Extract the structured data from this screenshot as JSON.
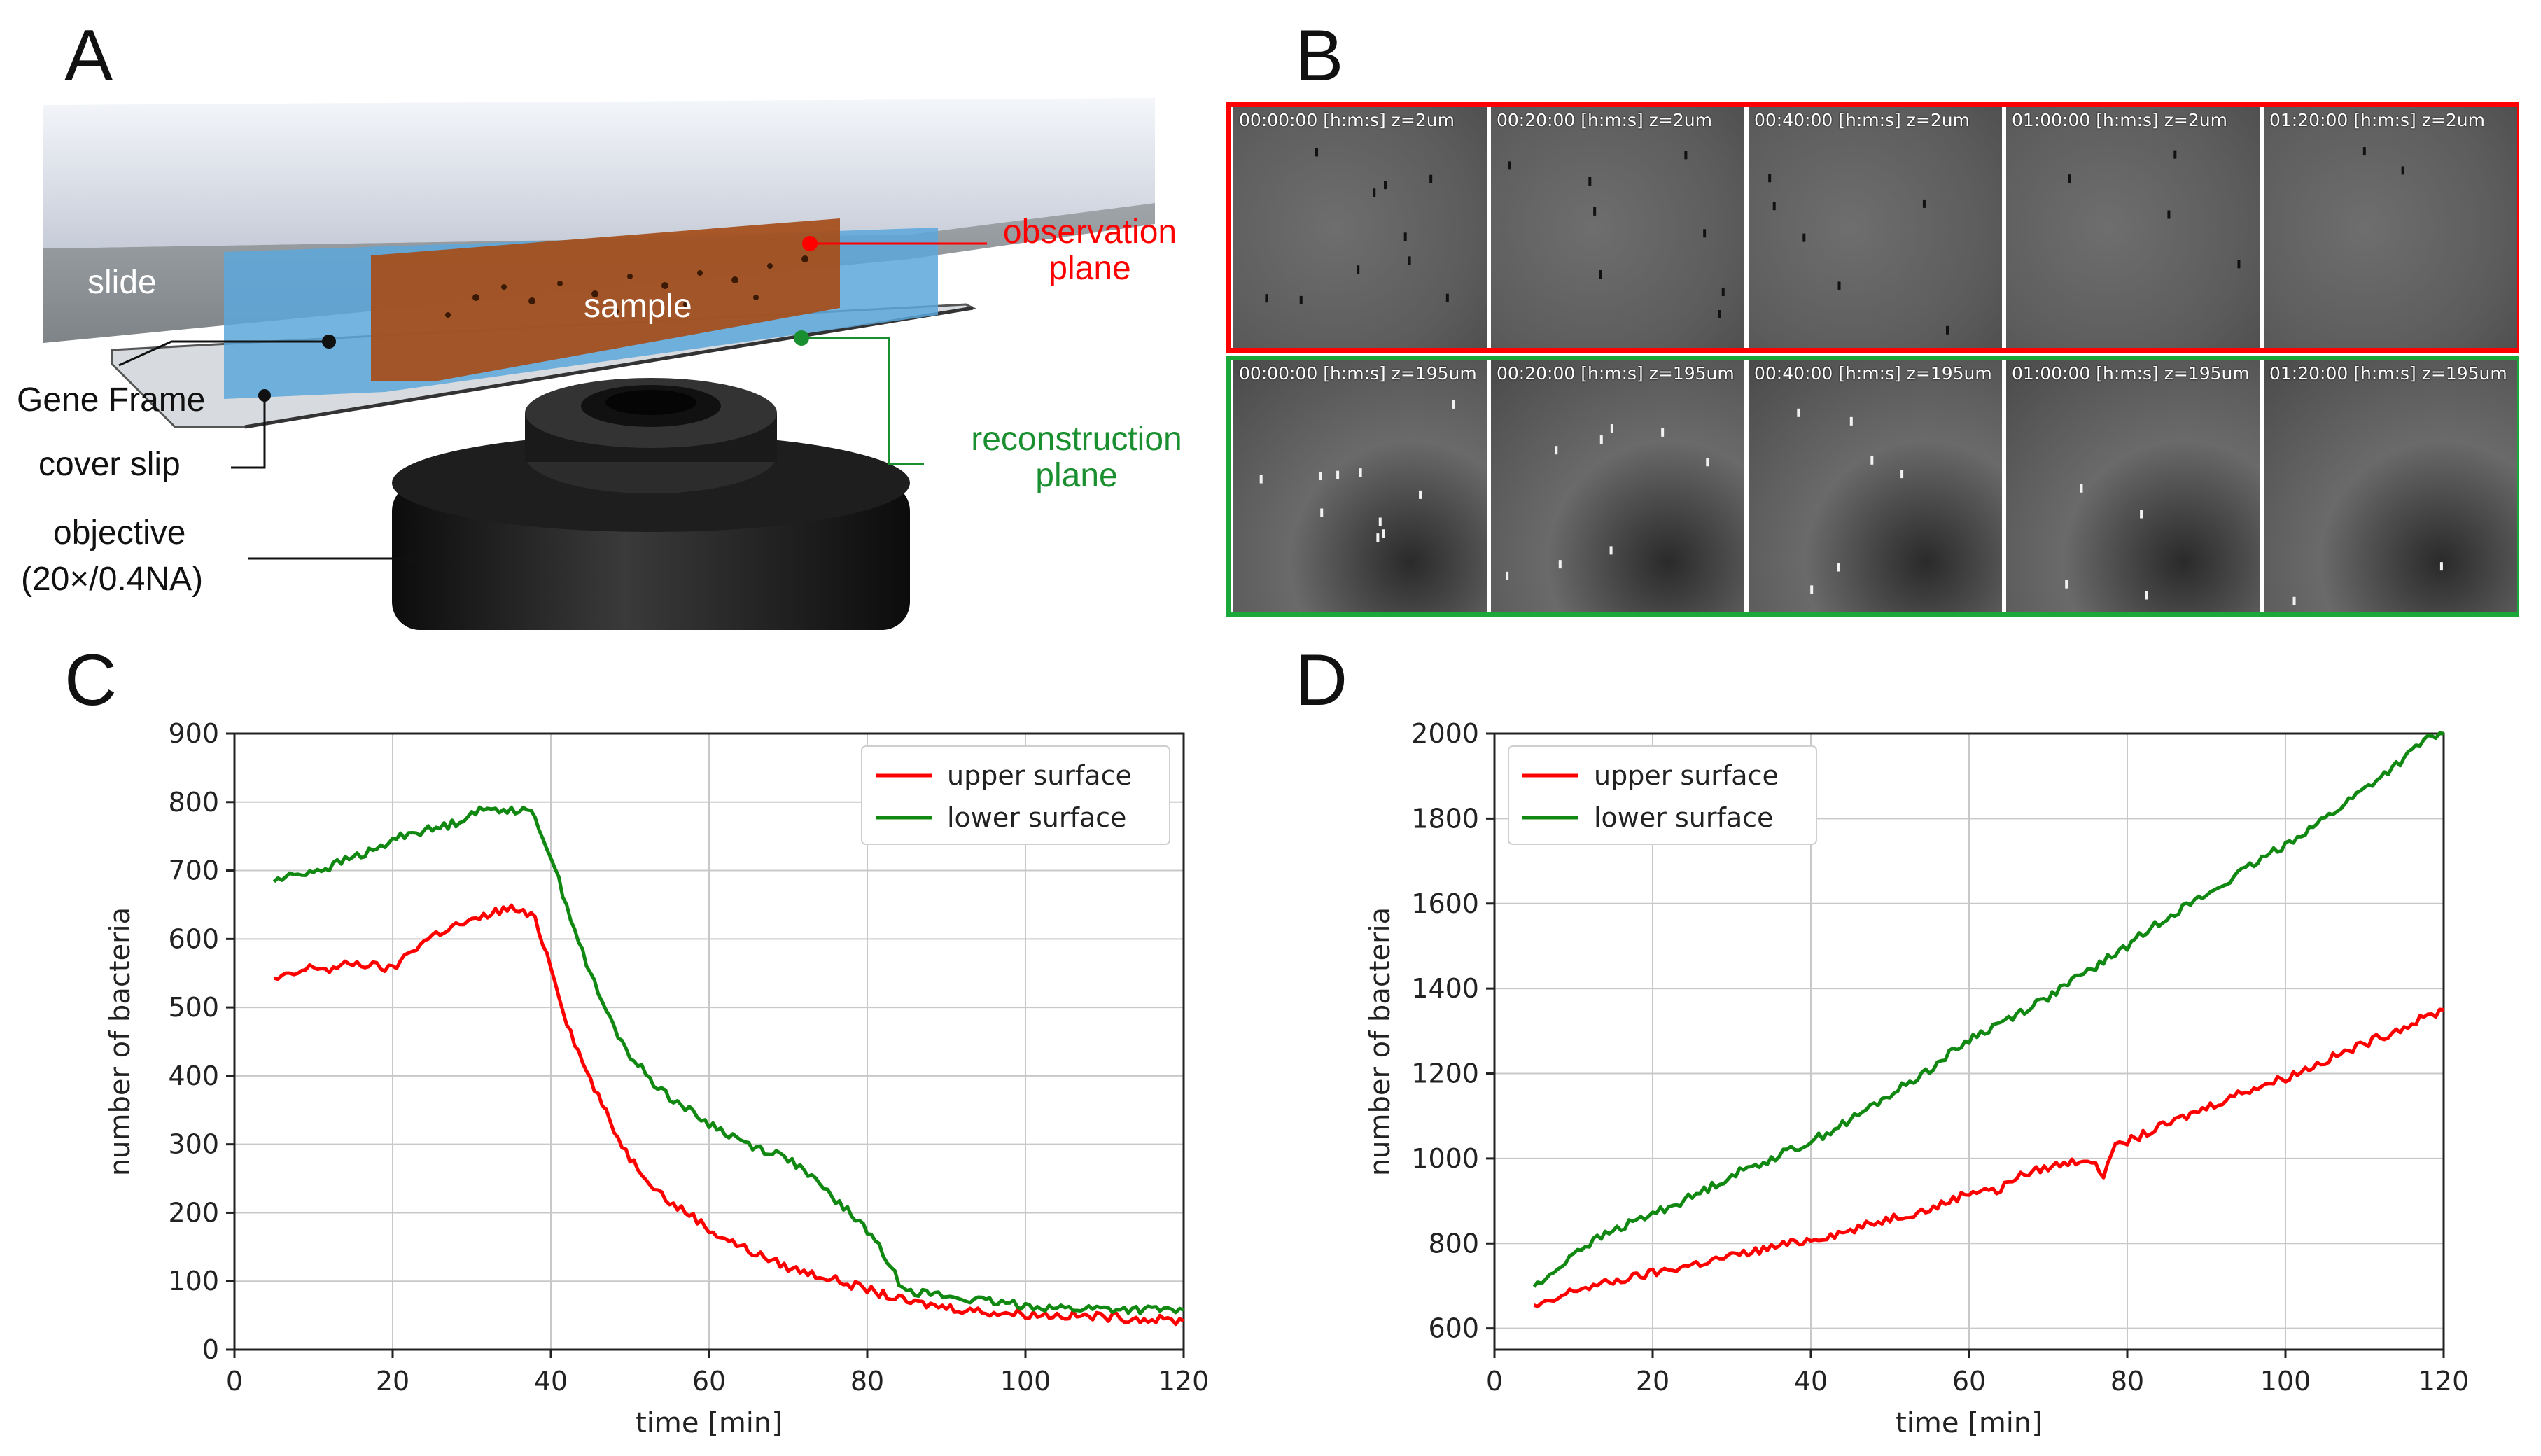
{
  "panels": {
    "a": "A",
    "b": "B",
    "c": "C",
    "d": "D"
  },
  "schematic": {
    "slide": "slide",
    "sample": "sample",
    "gene_frame": "Gene Frame",
    "cover_slip": "cover slip",
    "objective": "objective",
    "objective_spec": "(20×/0.4NA)",
    "observation_l1": "observation",
    "observation_l2": "plane",
    "reconstruction_l1": "reconstruction",
    "reconstruction_l2": "plane"
  },
  "colors": {
    "red": "#ff0000",
    "green": "#14a83c",
    "chart_red": "#ff0000",
    "chart_green": "#118811"
  },
  "timelapse": {
    "top_row": [
      "00:00:00 [h:m:s] z=2um",
      "00:20:00 [h:m:s] z=2um",
      "00:40:00 [h:m:s] z=2um",
      "01:00:00 [h:m:s] z=2um",
      "01:20:00 [h:m:s] z=2um"
    ],
    "bottom_row": [
      "00:00:00 [h:m:s] z=195um",
      "00:20:00 [h:m:s] z=195um",
      "00:40:00 [h:m:s] z=195um",
      "01:00:00 [h:m:s] z=195um",
      "01:20:00 [h:m:s] z=195um"
    ]
  },
  "chart_data": [
    {
      "type": "line",
      "panel": "C",
      "xlabel": "time [min]",
      "ylabel": "number of bacteria",
      "xlim": [
        0,
        120
      ],
      "ylim": [
        0,
        900
      ],
      "xticks": [
        0,
        20,
        40,
        60,
        80,
        100,
        120
      ],
      "yticks": [
        0,
        100,
        200,
        300,
        400,
        500,
        600,
        700,
        800,
        900
      ],
      "grid": true,
      "legend": "top-right",
      "series": [
        {
          "name": "upper surface",
          "color": "#ff0000",
          "x": [
            5,
            8,
            10,
            12,
            15,
            18,
            20,
            22,
            25,
            28,
            30,
            33,
            35,
            37,
            38,
            40,
            42,
            44,
            46,
            48,
            50,
            53,
            55,
            58,
            60,
            65,
            70,
            75,
            80,
            85,
            90,
            95,
            100,
            105,
            110,
            115,
            120
          ],
          "y": [
            540,
            550,
            560,
            555,
            565,
            560,
            555,
            580,
            605,
            620,
            625,
            640,
            645,
            635,
            630,
            560,
            480,
            420,
            370,
            320,
            280,
            240,
            215,
            195,
            175,
            145,
            120,
            105,
            88,
            70,
            62,
            55,
            52,
            50,
            48,
            45,
            42
          ]
        },
        {
          "name": "lower surface",
          "color": "#118811",
          "x": [
            5,
            8,
            10,
            12,
            15,
            18,
            20,
            22,
            25,
            28,
            30,
            33,
            35,
            37,
            38,
            40,
            42,
            44,
            46,
            48,
            50,
            53,
            55,
            58,
            60,
            65,
            70,
            75,
            80,
            82,
            84,
            86,
            90,
            95,
            100,
            105,
            110,
            115,
            120
          ],
          "y": [
            685,
            695,
            700,
            705,
            720,
            730,
            745,
            755,
            760,
            770,
            785,
            790,
            790,
            785,
            780,
            720,
            650,
            580,
            520,
            470,
            430,
            390,
            370,
            345,
            330,
            300,
            280,
            230,
            175,
            140,
            100,
            85,
            78,
            70,
            65,
            60,
            60,
            58,
            58
          ]
        }
      ]
    },
    {
      "type": "line",
      "panel": "D",
      "xlabel": "time [min]",
      "ylabel": "number of bacteria",
      "xlim": [
        0,
        120
      ],
      "ylim": [
        550,
        2000
      ],
      "xticks": [
        0,
        20,
        40,
        60,
        80,
        100,
        120
      ],
      "yticks": [
        600,
        800,
        1000,
        1200,
        1400,
        1600,
        1800,
        2000
      ],
      "grid": true,
      "legend": "top-left",
      "series": [
        {
          "name": "upper surface",
          "color": "#ff0000",
          "x": [
            5,
            7,
            10,
            15,
            20,
            25,
            30,
            35,
            40,
            45,
            50,
            55,
            60,
            62,
            64,
            65,
            70,
            75,
            76,
            77,
            78,
            80,
            85,
            90,
            95,
            100,
            105,
            110,
            115,
            120
          ],
          "y": [
            650,
            660,
            690,
            710,
            730,
            750,
            770,
            790,
            810,
            830,
            860,
            880,
            920,
            930,
            920,
            950,
            980,
            1000,
            980,
            960,
            1020,
            1040,
            1080,
            1120,
            1160,
            1190,
            1230,
            1270,
            1310,
            1350
          ]
        },
        {
          "name": "lower surface",
          "color": "#118811",
          "x": [
            5,
            7,
            10,
            15,
            20,
            25,
            30,
            35,
            40,
            45,
            50,
            55,
            60,
            65,
            70,
            75,
            80,
            85,
            90,
            95,
            100,
            105,
            110,
            115,
            118,
            120
          ],
          "y": [
            700,
            720,
            780,
            830,
            870,
            910,
            960,
            1000,
            1040,
            1090,
            1150,
            1210,
            1280,
            1330,
            1380,
            1440,
            1500,
            1570,
            1620,
            1680,
            1740,
            1800,
            1870,
            1940,
            1990,
            2000
          ]
        }
      ]
    }
  ]
}
